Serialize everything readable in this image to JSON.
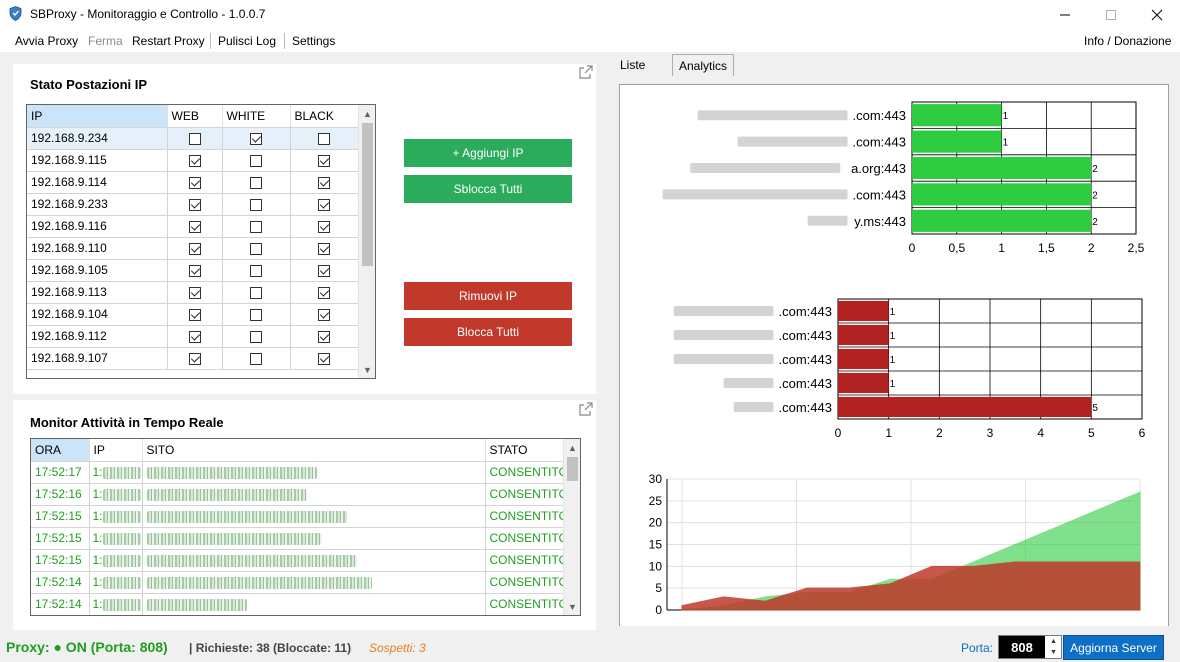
{
  "window": {
    "title": "SBProxy - Monitoraggio e Controllo - 1.0.0.7"
  },
  "menu": {
    "start_proxy": "Avvia Proxy",
    "stop": "Ferma",
    "restart_proxy": "Restart Proxy",
    "clear_log": "Pulisci Log",
    "settings": "Settings",
    "info": "Info / Donazione"
  },
  "ip_panel": {
    "title": "Stato Postazioni IP",
    "columns": [
      "IP",
      "WEB",
      "WHITE",
      "BLACK"
    ],
    "rows": [
      {
        "ip": "192.168.9.234",
        "web": false,
        "white": true,
        "black": false
      },
      {
        "ip": "192.168.9.115",
        "web": true,
        "white": false,
        "black": true
      },
      {
        "ip": "192.168.9.114",
        "web": true,
        "white": false,
        "black": true
      },
      {
        "ip": "192.168.9.233",
        "web": true,
        "white": false,
        "black": true
      },
      {
        "ip": "192.168.9.116",
        "web": true,
        "white": false,
        "black": true
      },
      {
        "ip": "192.168.9.110",
        "web": true,
        "white": false,
        "black": true
      },
      {
        "ip": "192.168.9.105",
        "web": true,
        "white": false,
        "black": true
      },
      {
        "ip": "192.168.9.113",
        "web": true,
        "white": false,
        "black": true
      },
      {
        "ip": "192.168.9.104",
        "web": true,
        "white": false,
        "black": true
      },
      {
        "ip": "192.168.9.112",
        "web": true,
        "white": false,
        "black": true
      },
      {
        "ip": "192.168.9.107",
        "web": true,
        "white": false,
        "black": true
      }
    ],
    "buttons": {
      "add_ip": "+ Aggiungi IP",
      "unblock_all": "Sblocca Tutti",
      "remove_ip": "Rimuovi IP",
      "block_all": "Blocca Tutti"
    }
  },
  "monitor_panel": {
    "title": "Monitor Attività in Tempo Reale",
    "columns": [
      "ORA",
      "IP",
      "SITO",
      "STATO"
    ],
    "ip_prefix": "1:",
    "rows": [
      {
        "time": "17:52:17",
        "status": "CONSENTITO"
      },
      {
        "time": "17:52:16",
        "status": "CONSENTITO"
      },
      {
        "time": "17:52:15",
        "status": "CONSENTITO"
      },
      {
        "time": "17:52:15",
        "status": "CONSENTITO"
      },
      {
        "time": "17:52:15",
        "status": "CONSENTITO"
      },
      {
        "time": "17:52:14",
        "status": "CONSENTITO"
      },
      {
        "time": "17:52:14",
        "status": "CONSENTITO"
      }
    ]
  },
  "tabs": {
    "lists": "Liste",
    "analytics": "Analytics"
  },
  "colors": {
    "allowed": "#2ecc40",
    "blocked": "#b22222",
    "status_on": "#1f9e1f",
    "suspects": "#e67e22",
    "button_green": "#2bab5c",
    "button_red": "#c0392b",
    "accent_blue": "#0e6fc6"
  },
  "chart_data": [
    {
      "type": "bar",
      "orientation": "horizontal",
      "categories": [
        ".com:443",
        ".com:443",
        "a.org:443",
        ".com:443",
        "y.ms:443"
      ],
      "values": [
        1,
        1,
        2,
        2,
        2
      ],
      "xlim": [
        0,
        2.5
      ],
      "x_ticks": [
        "0",
        "0,5",
        "1",
        "1,5",
        "2",
        "2,5"
      ],
      "grid": true,
      "bar_color": "#2ecc40",
      "data_labels": [
        "1",
        "1",
        "2",
        "2",
        "2"
      ]
    },
    {
      "type": "bar",
      "orientation": "horizontal",
      "categories": [
        ".com:443",
        ".com:443",
        ".com:443",
        ".com:443",
        ".com:443"
      ],
      "values": [
        1,
        1,
        1,
        1,
        5
      ],
      "xlim": [
        0,
        6
      ],
      "x_ticks": [
        "0",
        "1",
        "2",
        "3",
        "4",
        "5",
        "6"
      ],
      "grid": true,
      "bar_color": "#b22222",
      "data_labels": [
        "1",
        "1",
        "1",
        "1",
        "5"
      ]
    },
    {
      "type": "area",
      "ylim": [
        0,
        30
      ],
      "y_ticks": [
        "0",
        "5",
        "10",
        "15",
        "20",
        "25",
        "30"
      ],
      "grid": true,
      "series": [
        {
          "color": "#2ecc40",
          "values": [
            0,
            1,
            3,
            4,
            4,
            7,
            7,
            11,
            15,
            19,
            23,
            27
          ]
        },
        {
          "color": "#c0392b",
          "values": [
            1,
            3,
            2,
            5,
            5,
            6,
            10,
            10,
            11,
            11,
            11,
            11
          ]
        }
      ]
    }
  ],
  "statusbar": {
    "proxy_status": "Proxy: ● ON (Porta: 808)",
    "requests": "| Richieste: 38 (Bloccate: 11)",
    "suspects": "Sospetti: 3",
    "port_label": "Porta:",
    "port_value": "808",
    "update_button": "Aggiorna Server"
  }
}
